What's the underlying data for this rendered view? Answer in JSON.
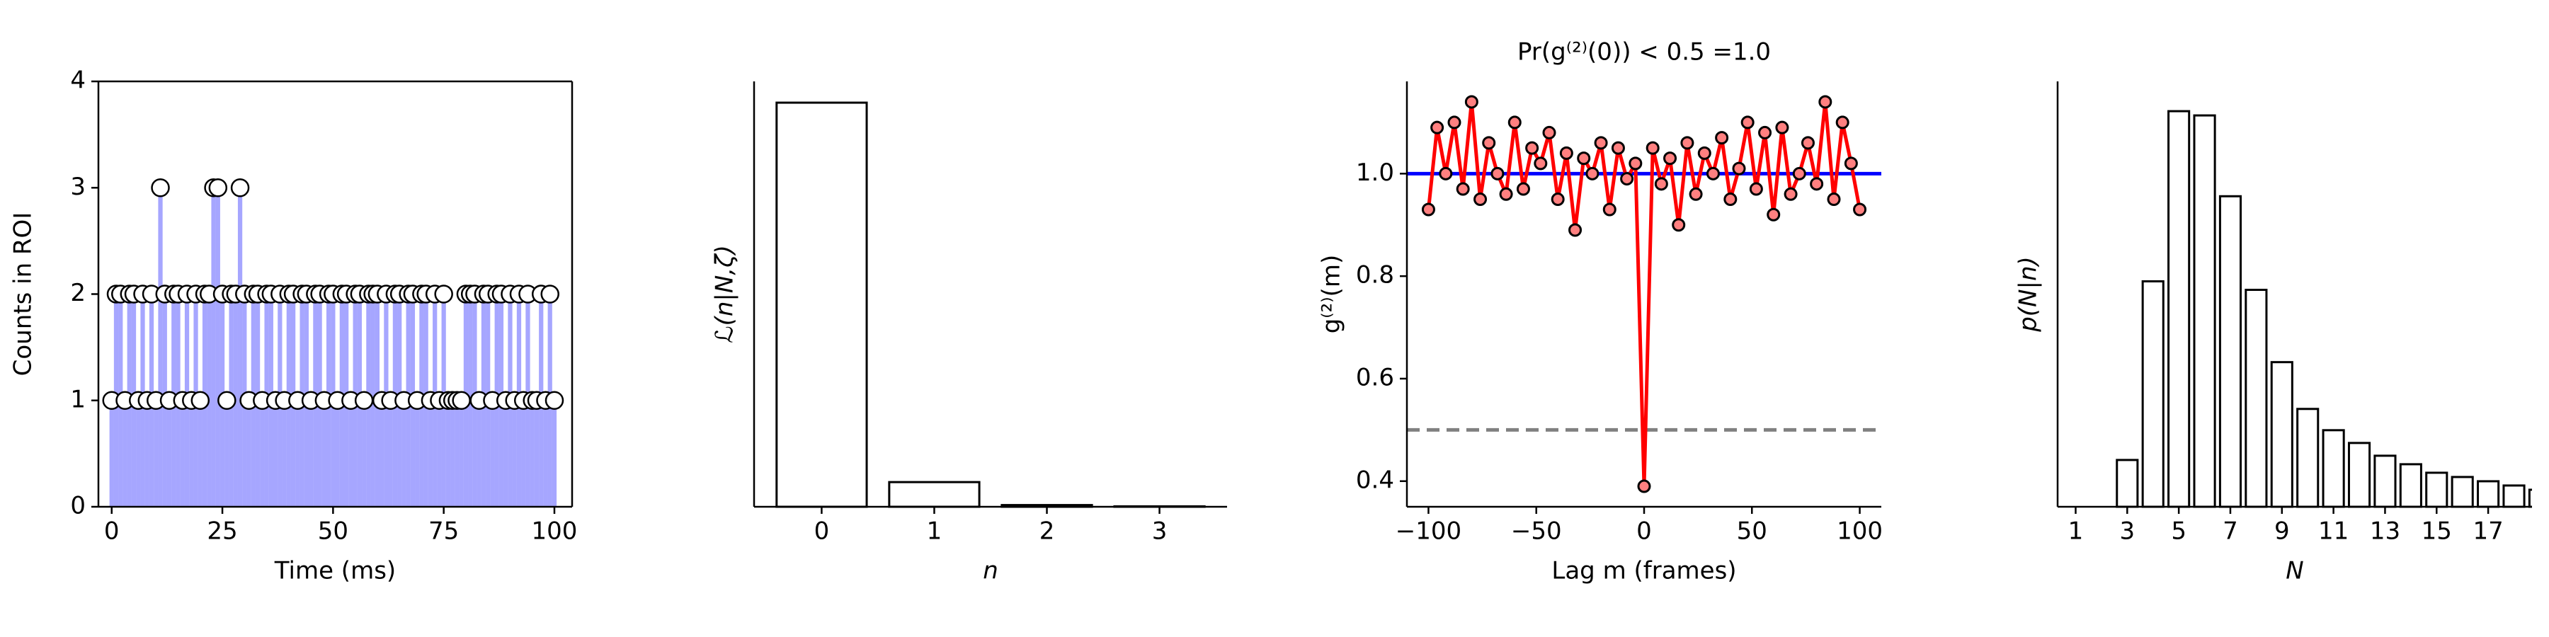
{
  "chart_data": [
    {
      "type": "stem",
      "xlabel": "Time (ms)",
      "ylabel": "Counts in ROI",
      "frame": true,
      "x": [
        0,
        1,
        2,
        3,
        4,
        5,
        6,
        7,
        8,
        9,
        10,
        11,
        12,
        13,
        14,
        15,
        16,
        17,
        18,
        19,
        20,
        21,
        22,
        23,
        24,
        25,
        26,
        27,
        28,
        29,
        30,
        31,
        32,
        33,
        34,
        35,
        36,
        37,
        38,
        39,
        40,
        41,
        42,
        43,
        44,
        45,
        46,
        47,
        48,
        49,
        50,
        51,
        52,
        53,
        54,
        55,
        56,
        57,
        58,
        59,
        60,
        61,
        62,
        63,
        64,
        65,
        66,
        67,
        68,
        69,
        70,
        71,
        72,
        73,
        74,
        75,
        76,
        77,
        78,
        79,
        80,
        81,
        82,
        83,
        84,
        85,
        86,
        87,
        88,
        89,
        90,
        91,
        92,
        93,
        94,
        95,
        96,
        97,
        98,
        99,
        100
      ],
      "values": [
        1,
        2,
        2,
        1,
        2,
        2,
        1,
        2,
        1,
        2,
        1,
        3,
        2,
        1,
        2,
        2,
        1,
        2,
        1,
        2,
        1,
        2,
        2,
        3,
        3,
        2,
        1,
        2,
        2,
        3,
        2,
        1,
        2,
        2,
        1,
        2,
        2,
        1,
        2,
        1,
        2,
        2,
        1,
        2,
        2,
        1,
        2,
        2,
        1,
        2,
        2,
        1,
        2,
        2,
        1,
        2,
        2,
        1,
        2,
        2,
        2,
        1,
        2,
        1,
        2,
        2,
        1,
        2,
        2,
        1,
        2,
        2,
        1,
        2,
        1,
        2,
        1,
        1,
        1,
        1,
        2,
        2,
        2,
        1,
        2,
        2,
        1,
        2,
        2,
        1,
        2,
        1,
        2,
        1,
        2,
        1,
        1,
        2,
        1,
        2,
        1
      ],
      "color": "#0000ff",
      "xlim": [
        -3,
        104
      ],
      "ylim": [
        0,
        4
      ],
      "xticks": [
        0,
        25,
        50,
        75,
        100
      ],
      "yticks": [
        0,
        1,
        2,
        3,
        4
      ]
    },
    {
      "type": "bar",
      "xlabel": "n",
      "ylabel": "ℒ(n|N,ζ)",
      "categories": [
        "0",
        "1",
        "2",
        "3"
      ],
      "values": [
        0.95,
        0.058,
        0.004,
        0.001
      ],
      "color": "#ffffff",
      "xlim": [
        -0.6,
        3.6
      ],
      "ylim": [
        0,
        1
      ]
    },
    {
      "type": "line",
      "title": "Pr(g⁽²⁾(0)) < 0.5 =1.0",
      "xlabel": "Lag m (frames)",
      "ylabel": "g⁽²⁾(m)",
      "x": [
        -100,
        -96,
        -92,
        -88,
        -84,
        -80,
        -76,
        -72,
        -68,
        -64,
        -60,
        -56,
        -52,
        -48,
        -44,
        -40,
        -36,
        -32,
        -28,
        -24,
        -20,
        -16,
        -12,
        -8,
        -4,
        0,
        4,
        8,
        12,
        16,
        20,
        24,
        28,
        32,
        36,
        40,
        44,
        48,
        52,
        56,
        60,
        64,
        68,
        72,
        76,
        80,
        84,
        88,
        92,
        96,
        100
      ],
      "values": [
        0.93,
        1.09,
        1.0,
        1.1,
        0.97,
        1.14,
        0.95,
        1.06,
        1.0,
        0.96,
        1.1,
        0.97,
        1.05,
        1.02,
        1.08,
        0.95,
        1.04,
        0.89,
        1.03,
        1.0,
        1.06,
        0.93,
        1.05,
        0.99,
        1.02,
        0.39,
        1.05,
        0.98,
        1.03,
        0.9,
        1.06,
        0.96,
        1.04,
        1.0,
        1.07,
        0.95,
        1.01,
        1.1,
        0.97,
        1.08,
        0.92,
        1.09,
        0.96,
        1.0,
        1.06,
        0.98,
        1.14,
        0.95,
        1.1,
        1.02,
        0.93
      ],
      "color": "#ff0000",
      "hlines": [
        {
          "y": 1.0,
          "color": "#0000ff"
        },
        {
          "y": 0.5,
          "color": "#808080",
          "dashed": true
        }
      ],
      "xlim": [
        -110,
        110
      ],
      "ylim": [
        0.35,
        1.18
      ],
      "xticks": [
        {
          "value": -100,
          "label": "−100"
        },
        {
          "value": -50,
          "label": "−50"
        },
        0,
        50,
        100
      ],
      "yticks": [
        0.4,
        0.6,
        0.8,
        {
          "value": 1.0,
          "label": "1.0"
        }
      ]
    },
    {
      "type": "bar",
      "xlabel": "N",
      "ylabel": "p(N|n)",
      "x": [
        1,
        2,
        3,
        4,
        5,
        6,
        7,
        8,
        9,
        10,
        11,
        12,
        13,
        14,
        15,
        16,
        17,
        18,
        19
      ],
      "values": [
        0,
        0,
        0.11,
        0.53,
        0.93,
        0.92,
        0.73,
        0.51,
        0.34,
        0.23,
        0.18,
        0.15,
        0.12,
        0.1,
        0.08,
        0.07,
        0.06,
        0.05,
        0.04
      ],
      "color": "#ffffff",
      "xlim": [
        0.3,
        18.7
      ],
      "ylim": [
        0,
        1
      ],
      "xticks": [
        1,
        3,
        5,
        7,
        9,
        11,
        13,
        15,
        17
      ]
    }
  ]
}
